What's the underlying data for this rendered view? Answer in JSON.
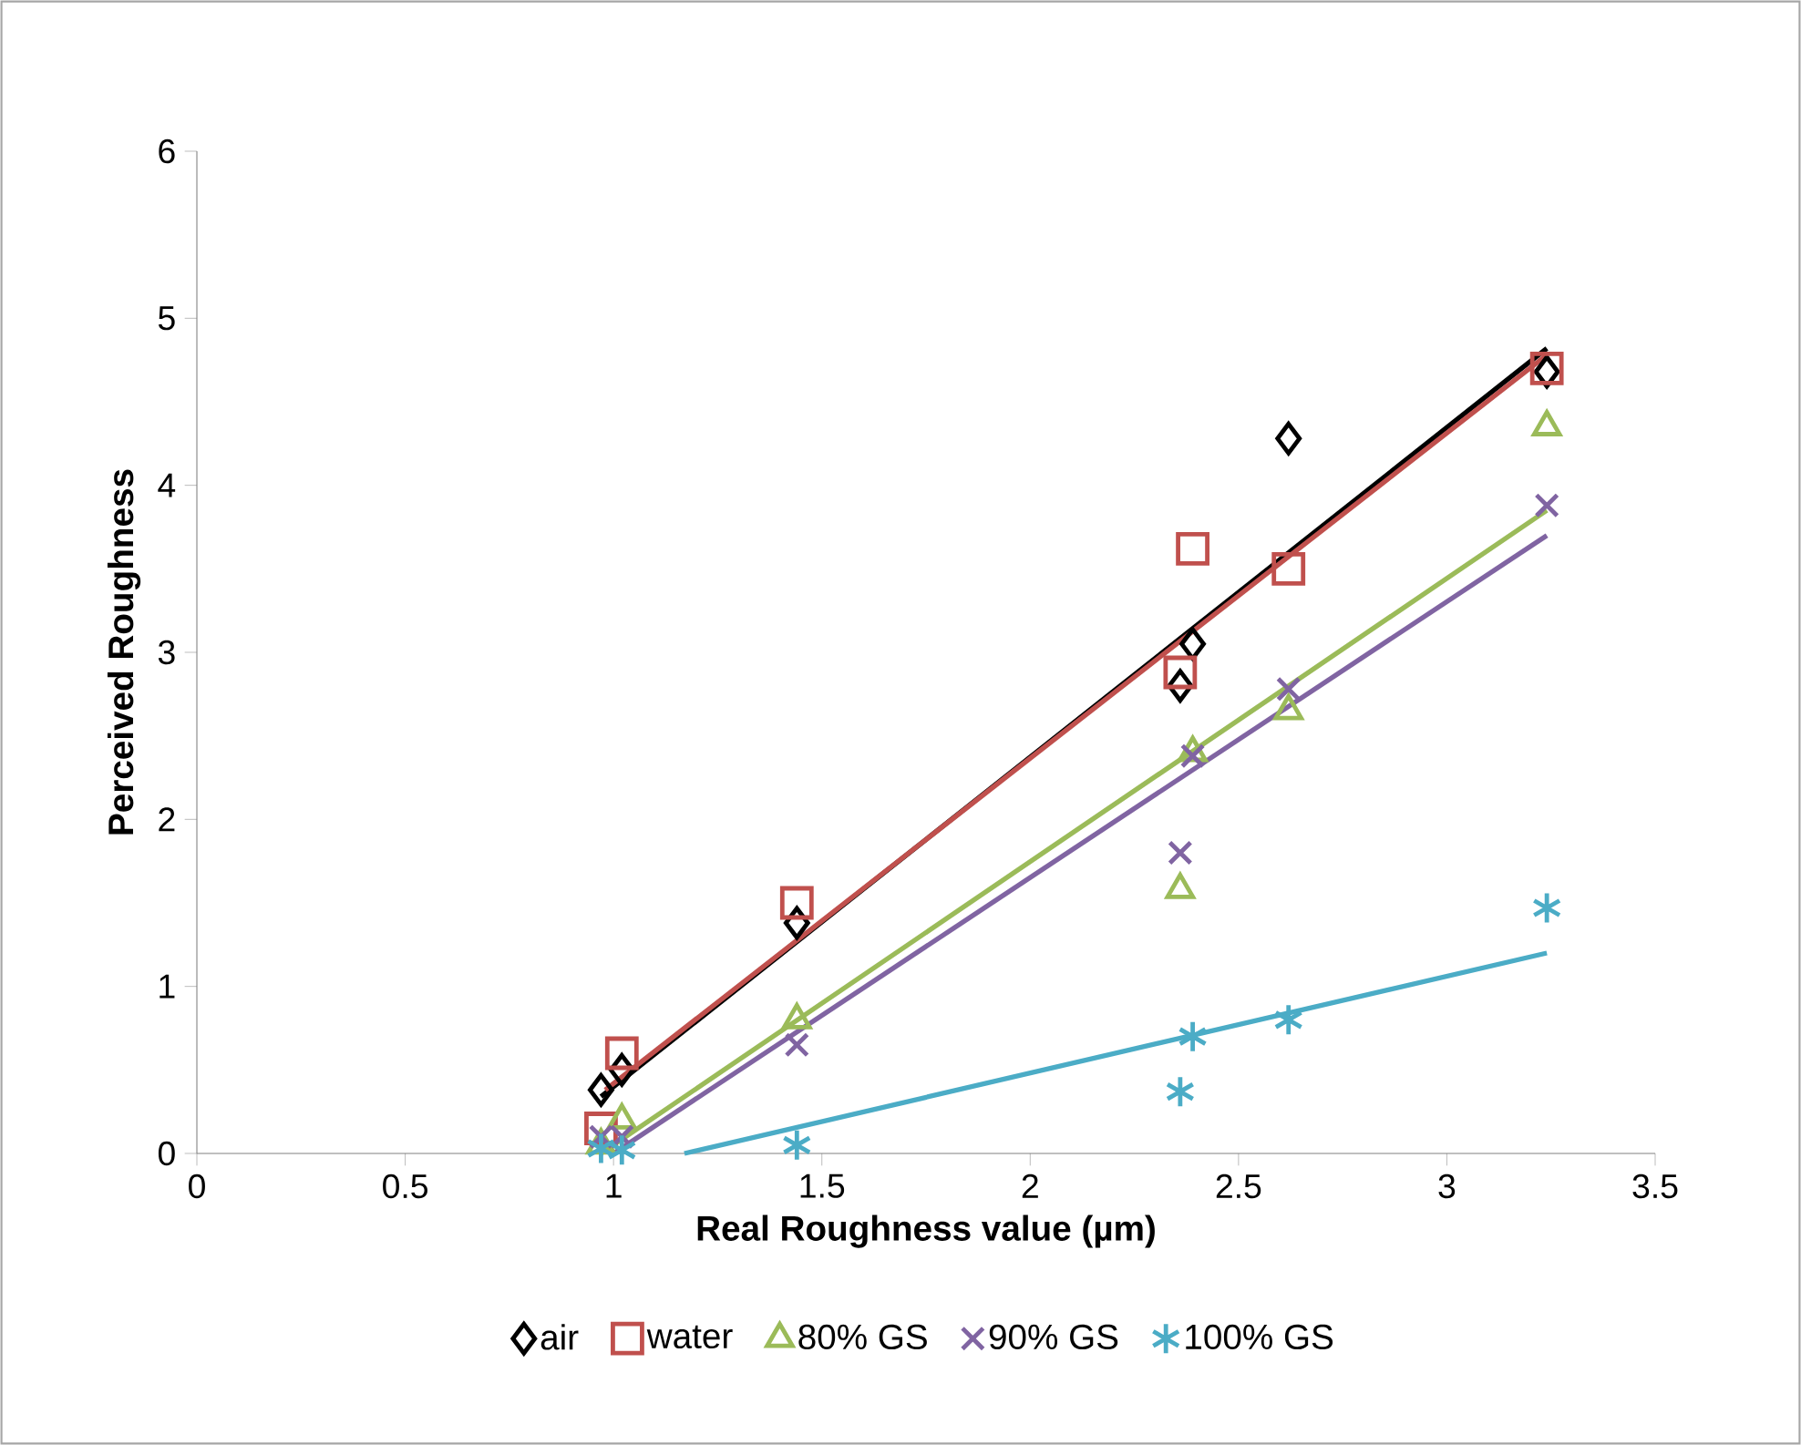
{
  "chart_data": {
    "type": "scatter",
    "xlabel": "Real Roughness value (µm)",
    "ylabel": "Perceived Roughness",
    "xlim": [
      0,
      3.5
    ],
    "ylim": [
      0,
      6
    ],
    "xticks": [
      0,
      0.5,
      1,
      1.5,
      2,
      2.5,
      3,
      3.5
    ],
    "yticks": [
      0,
      1,
      2,
      3,
      4,
      5,
      6
    ],
    "grid": false,
    "legend": "bottom",
    "series": [
      {
        "name": "air",
        "color": "#000000",
        "marker": "diamond",
        "x": [
          0.97,
          1.02,
          1.44,
          2.36,
          2.39,
          2.62,
          3.24
        ],
        "values": [
          0.38,
          0.5,
          1.38,
          2.8,
          3.05,
          4.28,
          4.68
        ]
      },
      {
        "name": "water",
        "color": "#c0504d",
        "marker": "square",
        "x": [
          0.97,
          1.02,
          1.44,
          2.36,
          2.39,
          2.62,
          3.24
        ],
        "values": [
          0.15,
          0.6,
          1.5,
          2.88,
          3.62,
          3.5,
          4.7
        ]
      },
      {
        "name": "80% GS",
        "color": "#9bbb59",
        "marker": "triangle",
        "x": [
          0.97,
          1.02,
          1.44,
          2.36,
          2.39,
          2.62,
          3.24
        ],
        "values": [
          0.05,
          0.2,
          0.8,
          1.58,
          2.4,
          2.65,
          4.35
        ]
      },
      {
        "name": "90% GS",
        "color": "#8064a2",
        "marker": "cross",
        "x": [
          0.97,
          1.02,
          1.44,
          2.36,
          2.39,
          2.62,
          3.24
        ],
        "values": [
          0.1,
          0.1,
          0.65,
          1.8,
          2.38,
          2.78,
          3.88
        ]
      },
      {
        "name": "100% GS",
        "color": "#4bacc6",
        "x": [
          0.97,
          1.02,
          1.44,
          2.36,
          2.39,
          2.62,
          3.24
        ],
        "values": [
          0.03,
          0.02,
          0.05,
          0.37,
          0.7,
          0.8,
          1.47
        ]
      },
      {
        "type": "line",
        "color": "#000000",
        "marker": "none",
        "x": [
          0.97,
          3.24
        ],
        "values": [
          0.34,
          4.82
        ]
      },
      {
        "type": "line",
        "color": "#c0504d",
        "marker": "none",
        "x": [
          0.98,
          3.24
        ],
        "values": [
          0.38,
          4.78
        ]
      },
      {
        "type": "line",
        "color": "#9bbb59",
        "marker": "none",
        "x": [
          0.97,
          3.24
        ],
        "values": [
          0.0,
          3.85
        ]
      },
      {
        "type": "line",
        "color": "#8064a2",
        "marker": "none",
        "x": [
          1.0,
          3.24
        ],
        "values": [
          0.0,
          3.7
        ]
      },
      {
        "type": "line",
        "color": "#4bacc6",
        "marker": "none",
        "x": [
          1.17,
          3.24
        ],
        "values": [
          0.0,
          1.2
        ]
      }
    ]
  }
}
